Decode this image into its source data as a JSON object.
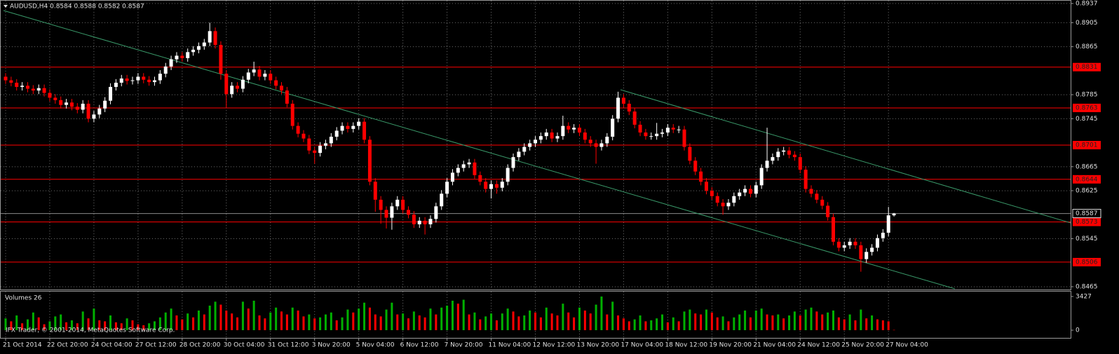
{
  "chart_data": {
    "type": "candlestick",
    "title": "AUDUSD,H4  0.8584 0.8588 0.8582 0.8587",
    "watermark": "IFX Trader, © 2001-2014, MetaQuotes Software Corp.",
    "categories": [
      "21 Oct 2014",
      null,
      null,
      null,
      null,
      null,
      null,
      null,
      "22 Oct 20:00",
      null,
      null,
      null,
      null,
      null,
      null,
      null,
      "24 Oct 04:00",
      null,
      null,
      null,
      null,
      null,
      null,
      null,
      "27 Oct 12:00",
      null,
      null,
      null,
      null,
      null,
      null,
      null,
      "28 Oct 20:00",
      null,
      null,
      null,
      null,
      null,
      null,
      null,
      "30 Oct 04:00",
      null,
      null,
      null,
      null,
      null,
      null,
      null,
      "31 Oct 12:00",
      null,
      null,
      null,
      null,
      null,
      null,
      null,
      "3 Nov 20:00",
      null,
      null,
      null,
      null,
      null,
      null,
      null,
      "5 Nov 04:00",
      null,
      null,
      null,
      null,
      null,
      null,
      null,
      "6 Nov 12:00",
      null,
      null,
      null,
      null,
      null,
      null,
      null,
      "7 Nov 20:00",
      null,
      null,
      null,
      null,
      null,
      null,
      null,
      "11 Nov 04:00",
      null,
      null,
      null,
      null,
      null,
      null,
      null,
      "12 Nov 12:00",
      null,
      null,
      null,
      null,
      null,
      null,
      null,
      "13 Nov 20:00",
      null,
      null,
      null,
      null,
      null,
      null,
      null,
      "17 Nov 04:00",
      null,
      null,
      null,
      null,
      null,
      null,
      null,
      "18 Nov 12:00",
      null,
      null,
      null,
      null,
      null,
      null,
      null,
      "19 Nov 20:00",
      null,
      null,
      null,
      null,
      null,
      null,
      null,
      "21 Nov 04:00",
      null,
      null,
      null,
      null,
      null,
      null,
      null,
      "24 Nov 12:00",
      null,
      null,
      null,
      null,
      null,
      null,
      null,
      "25 Nov 20:00",
      null,
      null,
      null,
      null,
      null,
      null,
      null,
      "27 Nov 04:00",
      null
    ],
    "open": [
      0.8815,
      0.8809,
      0.8805,
      0.8798,
      0.88,
      0.8795,
      0.8792,
      0.8796,
      0.8788,
      0.878,
      0.8776,
      0.8768,
      0.8772,
      0.8765,
      0.876,
      0.877,
      0.8745,
      0.8752,
      0.8762,
      0.8775,
      0.8798,
      0.8805,
      0.8812,
      0.8808,
      0.8809,
      0.8815,
      0.881,
      0.8806,
      0.8809,
      0.882,
      0.8832,
      0.8844,
      0.885,
      0.8846,
      0.8856,
      0.886,
      0.8866,
      0.8872,
      0.8891,
      0.8868,
      0.882,
      0.8786,
      0.88,
      0.8795,
      0.881,
      0.8822,
      0.8827,
      0.8815,
      0.882,
      0.8809,
      0.88,
      0.8792,
      0.877,
      0.8733,
      0.872,
      0.8712,
      0.8692,
      0.8688,
      0.87,
      0.8704,
      0.8715,
      0.8725,
      0.8733,
      0.8728,
      0.8733,
      0.874,
      0.871,
      0.864,
      0.861,
      0.8593,
      0.858,
      0.8599,
      0.861,
      0.8593,
      0.8585,
      0.8569,
      0.8575,
      0.8569,
      0.8578,
      0.8599,
      0.862,
      0.864,
      0.8655,
      0.8663,
      0.8669,
      0.8672,
      0.8651,
      0.864,
      0.8628,
      0.8636,
      0.863,
      0.864,
      0.8663,
      0.8681,
      0.869,
      0.8698,
      0.8704,
      0.871,
      0.8716,
      0.8722,
      0.8712,
      0.8716,
      0.8733,
      0.8727,
      0.873,
      0.8722,
      0.871,
      0.8704,
      0.8698,
      0.8704,
      0.8715,
      0.8745,
      0.878,
      0.877,
      0.8757,
      0.8735,
      0.8722,
      0.8716,
      0.8716,
      0.872,
      0.8722,
      0.873,
      0.8727,
      0.8727,
      0.8698,
      0.8675,
      0.8657,
      0.864,
      0.8625,
      0.8616,
      0.8605,
      0.8599,
      0.8605,
      0.8616,
      0.8622,
      0.8628,
      0.862,
      0.8634,
      0.8663,
      0.8675,
      0.8681,
      0.869,
      0.8692,
      0.8685,
      0.8681,
      0.866,
      0.8628,
      0.862,
      0.861,
      0.86,
      0.8581,
      0.854,
      0.853,
      0.8534,
      0.854,
      0.8534,
      0.8511,
      0.8523,
      0.853,
      0.8546,
      0.8555,
      0.8584
    ],
    "high": [
      0.8821,
      0.8815,
      0.8811,
      0.8806,
      0.8806,
      0.8801,
      0.8802,
      0.8802,
      0.8794,
      0.8786,
      0.8782,
      0.8778,
      0.8778,
      0.8771,
      0.8776,
      0.8776,
      0.8758,
      0.8768,
      0.8781,
      0.8804,
      0.8811,
      0.8818,
      0.8818,
      0.8815,
      0.8821,
      0.8821,
      0.8816,
      0.8815,
      0.8826,
      0.8838,
      0.885,
      0.8856,
      0.8856,
      0.8862,
      0.8866,
      0.8872,
      0.8878,
      0.8905,
      0.8897,
      0.8874,
      0.8826,
      0.8806,
      0.8806,
      0.8816,
      0.8828,
      0.884,
      0.8833,
      0.8826,
      0.8826,
      0.8815,
      0.8806,
      0.8798,
      0.8776,
      0.8739,
      0.8726,
      0.8718,
      0.8698,
      0.8706,
      0.871,
      0.8721,
      0.8731,
      0.8739,
      0.8739,
      0.8739,
      0.8746,
      0.8746,
      0.8716,
      0.8646,
      0.8616,
      0.8599,
      0.8605,
      0.8616,
      0.8616,
      0.8599,
      0.8591,
      0.8581,
      0.8581,
      0.8584,
      0.8605,
      0.8626,
      0.8646,
      0.8661,
      0.8669,
      0.8675,
      0.8678,
      0.8678,
      0.8657,
      0.8646,
      0.8642,
      0.8642,
      0.8646,
      0.8669,
      0.8687,
      0.8696,
      0.8704,
      0.871,
      0.8716,
      0.8722,
      0.8728,
      0.8728,
      0.8722,
      0.875,
      0.8739,
      0.8736,
      0.8736,
      0.8728,
      0.8716,
      0.871,
      0.871,
      0.8721,
      0.8751,
      0.879,
      0.8786,
      0.8776,
      0.8763,
      0.8741,
      0.8728,
      0.8722,
      0.8738,
      0.8728,
      0.8736,
      0.8736,
      0.8733,
      0.8733,
      0.8704,
      0.8681,
      0.8663,
      0.8646,
      0.8631,
      0.8622,
      0.8611,
      0.8611,
      0.8622,
      0.8628,
      0.8634,
      0.8634,
      0.864,
      0.8669,
      0.873,
      0.8687,
      0.8696,
      0.8698,
      0.8698,
      0.8691,
      0.8687,
      0.8666,
      0.8634,
      0.8626,
      0.8616,
      0.8606,
      0.8587,
      0.8546,
      0.854,
      0.8546,
      0.8546,
      0.854,
      0.8529,
      0.8536,
      0.8552,
      0.8561,
      0.8598,
      0.8588
    ],
    "low": [
      0.8803,
      0.8799,
      0.8792,
      0.8792,
      0.8789,
      0.8786,
      0.8786,
      0.8782,
      0.8774,
      0.877,
      0.8762,
      0.8762,
      0.8759,
      0.8754,
      0.8754,
      0.8739,
      0.8739,
      0.8746,
      0.8756,
      0.8769,
      0.8792,
      0.8799,
      0.8802,
      0.8802,
      0.8803,
      0.8804,
      0.88,
      0.88,
      0.8803,
      0.8814,
      0.8826,
      0.8838,
      0.884,
      0.884,
      0.885,
      0.8854,
      0.886,
      0.8866,
      0.8862,
      0.881,
      0.8764,
      0.878,
      0.8789,
      0.8789,
      0.8804,
      0.8816,
      0.8809,
      0.8809,
      0.8803,
      0.8794,
      0.8786,
      0.8764,
      0.8727,
      0.8714,
      0.8706,
      0.8686,
      0.867,
      0.8682,
      0.8694,
      0.8698,
      0.8709,
      0.8719,
      0.8722,
      0.8722,
      0.8727,
      0.8704,
      0.8634,
      0.859,
      0.857,
      0.8562,
      0.856,
      0.8593,
      0.8587,
      0.8579,
      0.8563,
      0.8563,
      0.8552,
      0.8563,
      0.8572,
      0.8593,
      0.8614,
      0.8634,
      0.8649,
      0.8657,
      0.8663,
      0.8645,
      0.8634,
      0.8622,
      0.8612,
      0.862,
      0.8624,
      0.8634,
      0.8657,
      0.8675,
      0.8684,
      0.8692,
      0.8698,
      0.8704,
      0.871,
      0.8706,
      0.8706,
      0.871,
      0.8721,
      0.8721,
      0.8716,
      0.8704,
      0.8698,
      0.867,
      0.8692,
      0.8698,
      0.8709,
      0.8739,
      0.8764,
      0.8751,
      0.8729,
      0.8716,
      0.871,
      0.871,
      0.871,
      0.8714,
      0.8716,
      0.8721,
      0.8721,
      0.8692,
      0.8669,
      0.8651,
      0.8634,
      0.8619,
      0.861,
      0.8599,
      0.8585,
      0.8593,
      0.8599,
      0.861,
      0.8616,
      0.8614,
      0.8614,
      0.8628,
      0.8657,
      0.8669,
      0.8675,
      0.8684,
      0.8679,
      0.8675,
      0.8654,
      0.8622,
      0.8614,
      0.8604,
      0.8594,
      0.8575,
      0.8534,
      0.8524,
      0.8524,
      0.8528,
      0.8528,
      0.849,
      0.8505,
      0.8517,
      0.8524,
      0.854,
      0.8549,
      0.8582
    ],
    "close": [
      0.8809,
      0.8805,
      0.8798,
      0.88,
      0.8795,
      0.8792,
      0.8796,
      0.8788,
      0.878,
      0.8776,
      0.8768,
      0.8772,
      0.8765,
      0.876,
      0.877,
      0.8745,
      0.8752,
      0.8762,
      0.8775,
      0.8798,
      0.8805,
      0.8812,
      0.8808,
      0.8809,
      0.8815,
      0.881,
      0.8806,
      0.8809,
      0.882,
      0.8832,
      0.8844,
      0.885,
      0.8846,
      0.8856,
      0.886,
      0.8866,
      0.8872,
      0.8891,
      0.8868,
      0.882,
      0.8786,
      0.88,
      0.8795,
      0.881,
      0.8822,
      0.8827,
      0.8815,
      0.882,
      0.8809,
      0.88,
      0.8792,
      0.877,
      0.8733,
      0.872,
      0.8712,
      0.8692,
      0.8688,
      0.87,
      0.8704,
      0.8715,
      0.8725,
      0.8733,
      0.8728,
      0.8733,
      0.874,
      0.871,
      0.864,
      0.861,
      0.8593,
      0.858,
      0.8599,
      0.861,
      0.8593,
      0.8585,
      0.8569,
      0.8575,
      0.8569,
      0.8578,
      0.8599,
      0.862,
      0.864,
      0.8655,
      0.8663,
      0.8669,
      0.8672,
      0.8651,
      0.864,
      0.8628,
      0.8636,
      0.863,
      0.864,
      0.8663,
      0.8681,
      0.869,
      0.8698,
      0.8704,
      0.871,
      0.8716,
      0.8722,
      0.8712,
      0.8716,
      0.8733,
      0.8727,
      0.873,
      0.8722,
      0.871,
      0.8704,
      0.8698,
      0.8704,
      0.8715,
      0.8745,
      0.878,
      0.877,
      0.8757,
      0.8735,
      0.8722,
      0.8716,
      0.8716,
      0.872,
      0.8722,
      0.873,
      0.8727,
      0.8727,
      0.8698,
      0.8675,
      0.8657,
      0.864,
      0.8625,
      0.8616,
      0.8605,
      0.8599,
      0.8605,
      0.8616,
      0.8622,
      0.8628,
      0.862,
      0.8634,
      0.8663,
      0.8675,
      0.8681,
      0.869,
      0.8692,
      0.8685,
      0.8681,
      0.866,
      0.8628,
      0.862,
      0.861,
      0.86,
      0.8581,
      0.854,
      0.853,
      0.8534,
      0.854,
      0.8534,
      0.8511,
      0.8523,
      0.853,
      0.8546,
      0.8555,
      0.8584,
      0.8587
    ],
    "up_color": "#ffffff",
    "down_color": "#ff0000",
    "ylim": [
      0.846,
      0.8937
    ],
    "yticks": [
      0.8937,
      0.8905,
      0.8865,
      0.8785,
      0.8745,
      0.8665,
      0.8625,
      0.8545,
      0.8465
    ],
    "grid": true,
    "levels": [
      0.8831,
      0.8763,
      0.8701,
      0.8644,
      0.8573,
      0.8506
    ],
    "level_color": "#ff0000",
    "bid": 0.8587,
    "volume": {
      "title": "Volumes 26",
      "up_color": "#00b000",
      "down_color": "#ff0000",
      "ylim": [
        0,
        3855
      ],
      "yticks": [
        3427,
        0
      ],
      "values": [
        1200,
        900,
        1500,
        700,
        1100,
        1800,
        1300,
        600,
        900,
        1400,
        1600,
        800,
        1000,
        700,
        1900,
        1200,
        2200,
        1000,
        900,
        1500,
        800,
        700,
        1200,
        1000,
        600,
        500,
        700,
        900,
        1300,
        1800,
        2200,
        1500,
        1100,
        1700,
        1300,
        2000,
        1600,
        2500,
        2900,
        2600,
        2000,
        1700,
        1300,
        2900,
        2200,
        3000,
        1500,
        1200,
        1800,
        2300,
        1900,
        1600,
        2300,
        2000,
        1400,
        1600,
        1200,
        1300,
        1600,
        1800,
        1000,
        1300,
        2100,
        1800,
        2200,
        2800,
        2300,
        1600,
        1400,
        2100,
        2800,
        1600,
        1700,
        1200,
        1900,
        1500,
        1300,
        2200,
        1600,
        2300,
        2500,
        3000,
        2700,
        3100,
        1600,
        1800,
        1100,
        1400,
        1700,
        1000,
        1700,
        2200,
        1900,
        1400,
        1500,
        2000,
        1800,
        1300,
        2300,
        1700,
        1500,
        2700,
        1800,
        1300,
        2300,
        2000,
        1700,
        2600,
        3427,
        1600,
        2900,
        1500,
        1200,
        900,
        1100,
        1500,
        900,
        1000,
        1200,
        1600,
        800,
        1300,
        900,
        1900,
        2100,
        1700,
        1600,
        2100,
        1800,
        1300,
        1400,
        900,
        1300,
        1600,
        2000,
        1300,
        2000,
        2200,
        1600,
        1500,
        1600,
        1200,
        1500,
        1900,
        1500,
        2100,
        2300,
        1900,
        1600,
        1800,
        2000,
        1300,
        1100,
        1600,
        1000,
        2100,
        1200,
        1500,
        1100,
        1000,
        900,
        26
      ]
    }
  }
}
